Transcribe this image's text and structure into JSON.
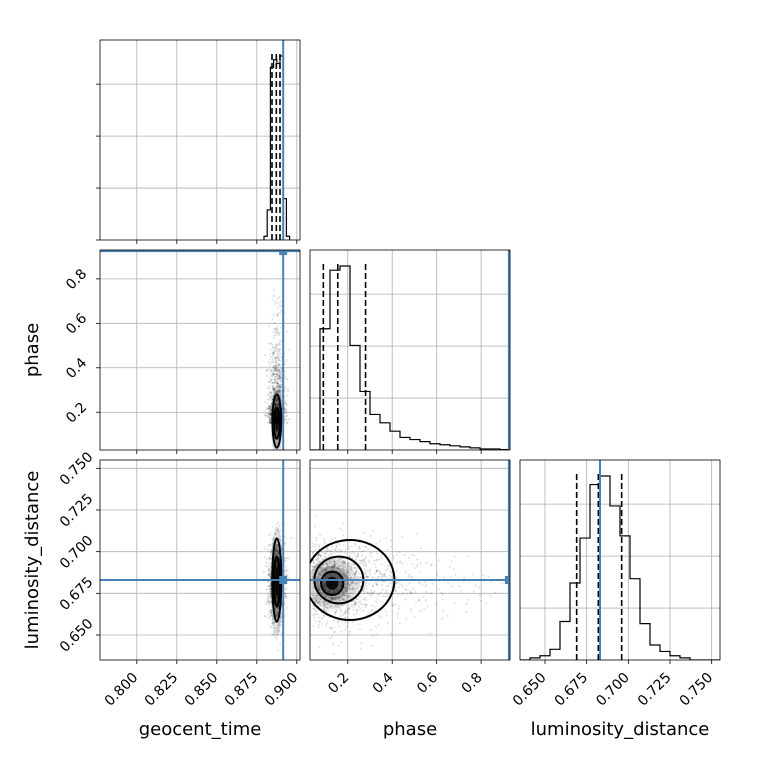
{
  "chart_data": {
    "type": "corner",
    "parameters": [
      "geocent_time",
      "phase",
      "luminosity_distance"
    ],
    "axis_labels": {
      "x": [
        "geocent_time",
        "phase",
        "luminosity_distance"
      ],
      "y": [
        "",
        "phase",
        "luminosity_distance"
      ]
    },
    "ranges": {
      "geocent_time": [
        0.777,
        0.902
      ],
      "phase": [
        0.03,
        0.93
      ],
      "luminosity_distance": [
        0.635,
        0.755
      ]
    },
    "ticks": {
      "geocent_time": [
        0.8,
        0.825,
        0.85,
        0.875,
        0.9
      ],
      "phase": [
        0.2,
        0.4,
        0.6,
        0.8
      ],
      "luminosity_distance": [
        0.65,
        0.675,
        0.7,
        0.725,
        0.75
      ]
    },
    "tick_labels": {
      "geocent_time": [
        "0.800",
        "0.825",
        "0.850",
        "0.875",
        "0.900"
      ],
      "phase": [
        "0.2",
        "0.4",
        "0.6",
        "0.8"
      ],
      "luminosity_distance": [
        "0.650",
        "0.675",
        "0.700",
        "0.725",
        "0.750"
      ]
    },
    "truths": {
      "geocent_time": 0.8915,
      "phase": 0.925,
      "luminosity_distance": 0.683
    },
    "quantiles": {
      "geocent_time": [
        0.8845,
        0.8872,
        0.8895
      ],
      "phase": [
        0.09,
        0.155,
        0.28
      ],
      "luminosity_distance": [
        0.669,
        0.682,
        0.696
      ]
    },
    "histograms": {
      "geocent_time": {
        "edges": [
          0.8795,
          0.8815,
          0.8835,
          0.8855,
          0.8875,
          0.8895,
          0.8915,
          0.8935,
          0.8955
        ],
        "counts": [
          2,
          16,
          92,
          96,
          94,
          98,
          22,
          2
        ]
      },
      "phase": {
        "edges": [
          0.03,
          0.075,
          0.12,
          0.165,
          0.21,
          0.255,
          0.3,
          0.345,
          0.39,
          0.435,
          0.48,
          0.525,
          0.57,
          0.615,
          0.66,
          0.705,
          0.75,
          0.795,
          0.84,
          0.885,
          0.93
        ],
        "counts": [
          0,
          58,
          86,
          88,
          50,
          28,
          17,
          13,
          9,
          6,
          5,
          4,
          3,
          2.5,
          2,
          1.5,
          1,
          0.5,
          0.5,
          0.2
        ]
      },
      "luminosity_distance": {
        "edges": [
          0.635,
          0.641,
          0.647,
          0.653,
          0.659,
          0.665,
          0.671,
          0.677,
          0.683,
          0.689,
          0.695,
          0.701,
          0.707,
          0.713,
          0.719,
          0.725,
          0.731,
          0.737,
          0.743,
          0.749,
          0.755
        ],
        "counts": [
          0,
          1,
          2,
          5,
          18,
          36,
          57,
          82,
          86,
          72,
          58,
          38,
          17,
          7,
          4,
          2,
          1,
          0,
          0,
          0
        ]
      }
    },
    "samples_2d": {
      "phase_vs_geocent_time": {
        "x_center": 0.8875,
        "x_spread": 0.0025,
        "y_center": 0.15,
        "y_spread": 0.13
      },
      "luminosity_distance_vs_geocent_time": {
        "x_center": 0.8875,
        "x_spread": 0.0025,
        "y_center": 0.682,
        "y_spread": 0.012
      },
      "luminosity_distance_vs_phase": {
        "x_center": 0.15,
        "x_spread": 0.14,
        "y_center": 0.682,
        "y_spread": 0.012
      }
    },
    "contours": {
      "phase_vs_geocent_time": [
        {
          "cx": 0.8875,
          "cy": 0.16,
          "rx": 0.0027,
          "ry": 0.12
        },
        {
          "cx": 0.8875,
          "cy": 0.15,
          "rx": 0.0017,
          "ry": 0.07
        }
      ],
      "luminosity_distance_vs_geocent_time": [
        {
          "cx": 0.8875,
          "cy": 0.683,
          "rx": 0.0028,
          "ry": 0.025
        },
        {
          "cx": 0.8875,
          "cy": 0.682,
          "rx": 0.0018,
          "ry": 0.015
        }
      ],
      "luminosity_distance_vs_phase": [
        {
          "cx": 0.21,
          "cy": 0.683,
          "rx": 0.2,
          "ry": 0.024
        },
        {
          "cx": 0.16,
          "cy": 0.683,
          "rx": 0.11,
          "ry": 0.014
        },
        {
          "cx": 0.13,
          "cy": 0.681,
          "rx": 0.05,
          "ry": 0.007
        }
      ]
    },
    "grid": true
  }
}
